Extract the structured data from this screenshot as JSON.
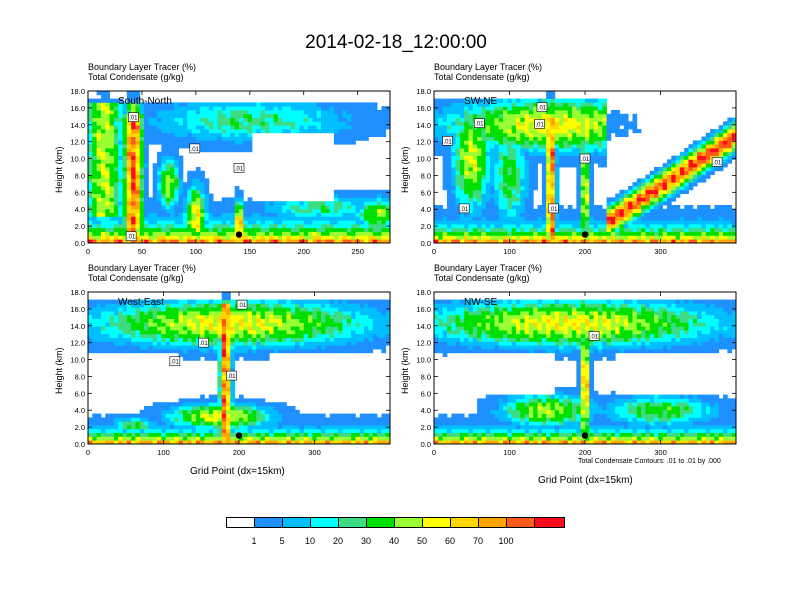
{
  "title": "2014-02-18_12:00:00",
  "panel_header": {
    "line1": "Boundary Layer Tracer    (%)",
    "line2": "Total Condensate    (g/kg)"
  },
  "y_axis_title": "Height (km)",
  "x_axis_title": "Grid Point (dx=15km)",
  "contour_note": "Total Condensate Contours: .01 to .01 by .000",
  "legend": {
    "colors": [
      "#ffffff",
      "#1e90ff",
      "#00bfff",
      "#00ffff",
      "#3ddc84",
      "#00e000",
      "#9aff32",
      "#ffff00",
      "#ffd700",
      "#ffa500",
      "#ff5a1a",
      "#ff0a1a"
    ],
    "labels": [
      "1",
      "5",
      "10",
      "20",
      "30",
      "40",
      "50",
      "60",
      "70",
      "100"
    ]
  },
  "chart_data": [
    {
      "type": "heatmap",
      "name": "South-North",
      "label": "South-North",
      "ylabel": "Height (km)",
      "xlabel": "",
      "x_ticks": [
        0,
        50,
        100,
        150,
        200,
        250
      ],
      "x_range": [
        0,
        280
      ],
      "y_ticks": [
        "0.0",
        "2.0",
        "4.0",
        "6.0",
        "8.0",
        "10.0",
        "12.0",
        "14.0",
        "16.0",
        "18.0"
      ],
      "y_range": [
        0,
        18
      ],
      "contour_labels": [
        {
          "text": ".01",
          "x": 42,
          "y": 14.9
        },
        {
          "text": ".01",
          "x": 99,
          "y": 11.2
        },
        {
          "text": ".01",
          "x": 140,
          "y": 8.9
        },
        {
          "text": ".01",
          "x": 40,
          "y": 0.8
        }
      ],
      "marker": {
        "x": 140,
        "y": 1.0
      }
    },
    {
      "type": "heatmap",
      "name": "SW-NE",
      "label": "SW-NE",
      "ylabel": "Height (km)",
      "xlabel": "",
      "x_ticks": [
        0,
        100,
        200,
        300
      ],
      "x_range": [
        0,
        400
      ],
      "y_ticks": [
        "0.0",
        "2.0",
        "4.0",
        "6.0",
        "8.0",
        "10.0",
        "12.0",
        "14.0",
        "16.0",
        "18.0"
      ],
      "y_range": [
        0,
        18
      ],
      "contour_labels": [
        {
          "text": ".01",
          "x": 143,
          "y": 16.1
        },
        {
          "text": ".01",
          "x": 60,
          "y": 14.2
        },
        {
          "text": ".01",
          "x": 140,
          "y": 14.1
        },
        {
          "text": ".01",
          "x": 18,
          "y": 12.1
        },
        {
          "text": ".01",
          "x": 200,
          "y": 10.0
        },
        {
          "text": ".01",
          "x": 375,
          "y": 9.6
        },
        {
          "text": ".01",
          "x": 40,
          "y": 4.1
        },
        {
          "text": ".01",
          "x": 158,
          "y": 4.1
        }
      ],
      "marker": {
        "x": 200,
        "y": 1.0
      }
    },
    {
      "type": "heatmap",
      "name": "West-East",
      "label": "West-East",
      "ylabel": "Height (km)",
      "xlabel": "Grid Point (dx=15km)",
      "x_ticks": [
        0,
        100,
        200,
        300
      ],
      "x_range": [
        0,
        400
      ],
      "y_ticks": [
        "0.0",
        "2.0",
        "4.0",
        "6.0",
        "8.0",
        "10.0",
        "12.0",
        "14.0",
        "16.0",
        "18.0"
      ],
      "y_range": [
        0,
        18
      ],
      "contour_labels": [
        {
          "text": ".01",
          "x": 204,
          "y": 16.5
        },
        {
          "text": ".01",
          "x": 153,
          "y": 12.0
        },
        {
          "text": ".01",
          "x": 115,
          "y": 9.8
        },
        {
          "text": ".01",
          "x": 190,
          "y": 8.1
        }
      ],
      "marker": {
        "x": 200,
        "y": 1.0
      }
    },
    {
      "type": "heatmap",
      "name": "NW-SE",
      "label": "NW-SE",
      "ylabel": "Height (km)",
      "xlabel": "Grid Point (dx=15km)",
      "x_ticks": [
        0,
        100,
        200,
        300
      ],
      "x_range": [
        0,
        400
      ],
      "y_ticks": [
        "0.0",
        "2.0",
        "4.0",
        "6.0",
        "8.0",
        "10.0",
        "12.0",
        "14.0",
        "16.0",
        "18.0"
      ],
      "y_range": [
        0,
        18
      ],
      "contour_labels": [
        {
          "text": ".01",
          "x": 212,
          "y": 12.8
        }
      ],
      "marker": {
        "x": 200,
        "y": 1.0
      }
    }
  ]
}
